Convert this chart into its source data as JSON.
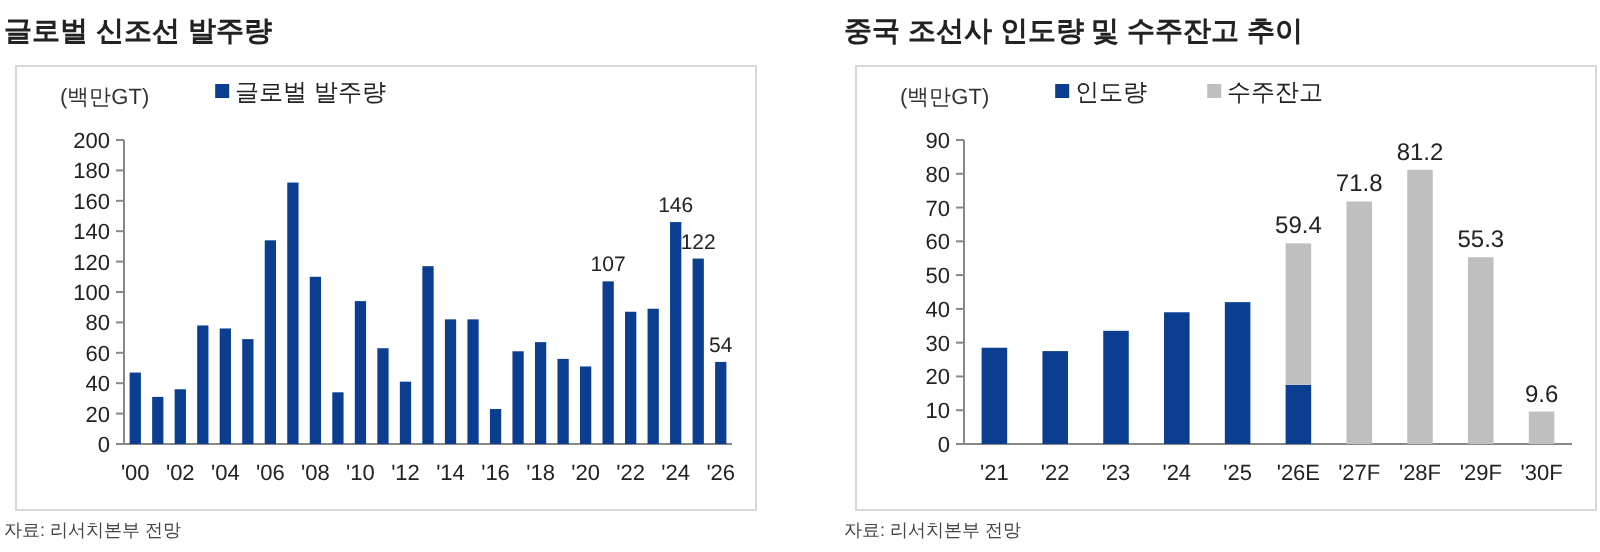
{
  "chart_data": [
    {
      "type": "bar",
      "title": "글로벌 신조선 발주량",
      "ylabel": "(백만GT)",
      "legend": "top",
      "categories": [
        "'00",
        null,
        "'02",
        null,
        "'04",
        null,
        "'06",
        null,
        "'08",
        null,
        "'10",
        null,
        "'12",
        null,
        "'14",
        null,
        "'16",
        null,
        "'18",
        null,
        "'20",
        null,
        "'22",
        null,
        "'24",
        null,
        "'26"
      ],
      "series": [
        {
          "name": "글로벌 발주량",
          "color": "#0b3d91",
          "values": [
            47,
            31,
            36,
            78,
            76,
            69,
            134,
            172,
            110,
            34,
            94,
            63,
            41,
            117,
            82,
            82,
            23,
            61,
            67,
            56,
            51,
            107,
            87,
            89,
            146,
            122,
            54
          ],
          "value_labels": [
            null,
            null,
            null,
            null,
            null,
            null,
            null,
            null,
            null,
            null,
            null,
            null,
            null,
            null,
            null,
            null,
            null,
            null,
            null,
            null,
            null,
            "107",
            null,
            null,
            "146",
            "122",
            "54"
          ]
        }
      ],
      "ylim": [
        0,
        200
      ],
      "yticks": [
        0,
        20,
        40,
        60,
        80,
        100,
        120,
        140,
        160,
        180,
        200
      ],
      "annotations": [
        "자료: 리서치본부 전망"
      ]
    },
    {
      "type": "bar",
      "title": "중국 조선사 인도량 및 수주잔고 추이",
      "ylabel": "(백만GT)",
      "legend": "top",
      "stacked": true,
      "categories": [
        "'21",
        "'22",
        "'23",
        "'24",
        "'25",
        "'26E",
        "'27F",
        "'28F",
        "'29F",
        "'30F"
      ],
      "series": [
        {
          "name": "인도량",
          "color": "#0b3d91",
          "values": [
            28.5,
            27.5,
            33.5,
            39,
            42,
            17.5,
            null,
            null,
            null,
            null
          ]
        },
        {
          "name": "수주잔고",
          "color": "#bfbfbf",
          "values": [
            null,
            null,
            null,
            null,
            null,
            41.9,
            71.8,
            81.2,
            55.3,
            9.6
          ]
        }
      ],
      "totals": [
        null,
        null,
        null,
        null,
        null,
        "59.4",
        "71.8",
        "81.2",
        "55.3",
        "9.6"
      ],
      "ylim": [
        0,
        90
      ],
      "yticks": [
        0,
        10,
        20,
        30,
        40,
        50,
        60,
        70,
        80,
        90
      ],
      "annotations": [
        "자료: 리서치본부 전망"
      ]
    }
  ]
}
